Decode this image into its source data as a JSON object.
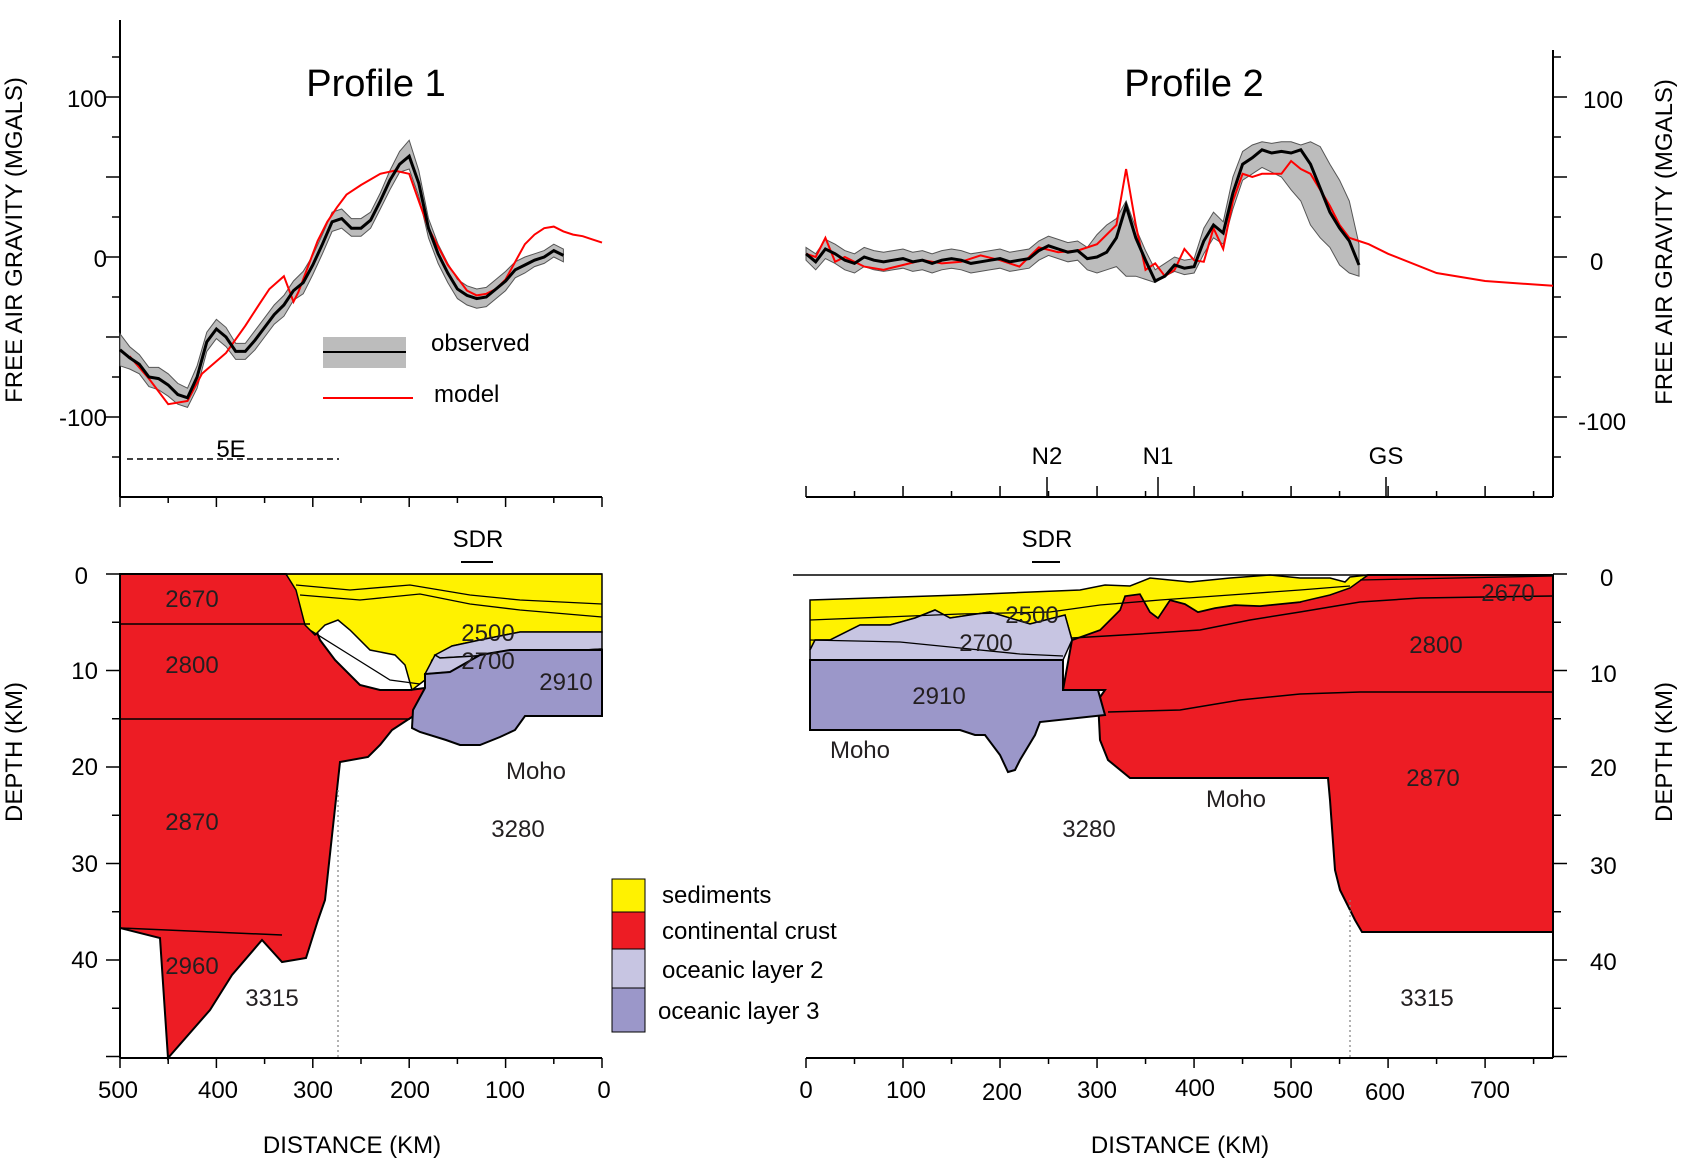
{
  "chart_data": [
    {
      "type": "line",
      "title": "Profile 1",
      "xlabel": "",
      "ylabel": "FREE AIR GRAVITY  (MGALS)",
      "xlim": [
        500,
        0
      ],
      "ylim": [
        -150,
        150
      ],
      "yticks": [
        100,
        0,
        -100
      ],
      "yticklabels": [
        "100",
        "0",
        "-100"
      ],
      "legend": {
        "placement": "lower-center",
        "entries": [
          "observed",
          "model"
        ]
      },
      "series": [
        {
          "name": "observed",
          "x": [
            500,
            490,
            480,
            470,
            460,
            450,
            440,
            430,
            420,
            410,
            400,
            390,
            380,
            370,
            360,
            350,
            340,
            330,
            320,
            310,
            300,
            290,
            280,
            270,
            260,
            250,
            240,
            230,
            220,
            210,
            200,
            190,
            180,
            170,
            160,
            150,
            140,
            130,
            120,
            110,
            100,
            90,
            80,
            70,
            60,
            50,
            40
          ],
          "y": [
            -58,
            -63,
            -67,
            -75,
            -76,
            -80,
            -86,
            -88,
            -75,
            -53,
            -45,
            -50,
            -59,
            -59,
            -52,
            -44,
            -36,
            -30,
            -21,
            -16,
            -5,
            8,
            22,
            24,
            18,
            18,
            23,
            35,
            48,
            58,
            63,
            46,
            18,
            2,
            -10,
            -20,
            -24,
            -26,
            -25,
            -20,
            -15,
            -8,
            -5,
            -2,
            0,
            4,
            1
          ]
        },
        {
          "name": "observed range",
          "x": [
            500,
            490,
            480,
            470,
            460,
            450,
            440,
            430,
            420,
            410,
            400,
            390,
            380,
            370,
            360,
            350,
            340,
            330,
            320,
            310,
            300,
            290,
            280,
            270,
            260,
            250,
            240,
            230,
            220,
            210,
            200,
            190,
            180,
            170,
            160,
            150,
            140,
            130,
            120,
            110,
            100,
            90,
            80,
            70,
            60,
            50,
            40
          ],
          "low": [
            -68,
            -70,
            -73,
            -81,
            -83,
            -87,
            -92,
            -94,
            -82,
            -59,
            -51,
            -56,
            -64,
            -64,
            -58,
            -50,
            -42,
            -37,
            -27,
            -23,
            -11,
            2,
            16,
            18,
            13,
            13,
            18,
            30,
            42,
            53,
            55,
            38,
            12,
            -4,
            -16,
            -26,
            -30,
            -32,
            -31,
            -26,
            -21,
            -13,
            -10,
            -6,
            -4,
            0,
            -3
          ],
          "high": [
            -48,
            -56,
            -61,
            -69,
            -69,
            -73,
            -79,
            -82,
            -68,
            -47,
            -39,
            -44,
            -54,
            -54,
            -46,
            -38,
            -30,
            -24,
            -15,
            -9,
            1,
            14,
            28,
            30,
            24,
            24,
            28,
            40,
            54,
            66,
            73,
            54,
            24,
            8,
            -4,
            -14,
            -18,
            -20,
            -19,
            -14,
            -9,
            -3,
            0,
            2,
            4,
            8,
            5
          ]
        },
        {
          "name": "model",
          "x": [
            490,
            470,
            450,
            430,
            415,
            390,
            370,
            355,
            345,
            330,
            320,
            315,
            305,
            295,
            285,
            275,
            265,
            250,
            230,
            215,
            200,
            190,
            180,
            160,
            140,
            130,
            120,
            110,
            100,
            90,
            80,
            70,
            60,
            50,
            40,
            30,
            20,
            10,
            0
          ],
          "y": [
            -62,
            -76,
            -92,
            -90,
            -73,
            -60,
            -43,
            -29,
            -20,
            -12,
            -28,
            -22,
            -6,
            10,
            22,
            31,
            39,
            45,
            52,
            54,
            52,
            35,
            18,
            -5,
            -21,
            -24,
            -23,
            -20,
            -14,
            -3,
            8,
            14,
            18,
            19,
            16,
            14,
            13,
            11,
            9
          ]
        }
      ],
      "annotations": [
        {
          "text": "5E",
          "x_start": 500,
          "x_end": 275,
          "style": "dashed"
        }
      ]
    },
    {
      "type": "area",
      "title": "",
      "xlabel": "DISTANCE (KM)",
      "ylabel": "DEPTH (KM)",
      "xlim": [
        500,
        0
      ],
      "ylim": [
        0,
        50
      ],
      "xticks": [
        500,
        400,
        300,
        200,
        100,
        0
      ],
      "xticklabels": [
        "500",
        "400",
        "300",
        "200",
        "100",
        "0"
      ],
      "yticks": [
        0,
        10,
        20,
        30,
        40
      ],
      "yticklabels": [
        "0",
        "10",
        "20",
        "30",
        "40"
      ],
      "marker": {
        "text": "SDR",
        "x_start": 150,
        "x_end": 115
      },
      "layers": [
        {
          "name": "continental crust",
          "densities": [
            2670,
            2800,
            2870,
            2960
          ]
        },
        {
          "name": "sediments"
        },
        {
          "name": "oceanic layer 2",
          "densities": [
            2500,
            2700
          ]
        },
        {
          "name": "oceanic layer 3",
          "densities": [
            2910
          ]
        }
      ],
      "density_labels": [
        "2670",
        "2800",
        "2870",
        "2960",
        "3315",
        "2500",
        "2700",
        "2910",
        "3280"
      ],
      "text_labels": [
        "Moho"
      ]
    },
    {
      "type": "line",
      "title": "Profile 2",
      "xlabel": "",
      "ylabel": "FREE AIR GRAVITY  (MGALS)",
      "xlim": [
        0,
        770
      ],
      "ylim": [
        -150,
        150
      ],
      "yticks": [
        100,
        0,
        -100
      ],
      "yticklabels": [
        "100",
        "0",
        "-100"
      ],
      "markers": [
        {
          "text": "N2",
          "x": 245
        },
        {
          "text": "N1",
          "x": 360
        },
        {
          "text": "GS",
          "x": 597
        }
      ],
      "series": [
        {
          "name": "observed",
          "x": [
            0,
            10,
            20,
            30,
            40,
            50,
            60,
            70,
            80,
            90,
            100,
            110,
            120,
            130,
            140,
            150,
            160,
            170,
            180,
            190,
            200,
            210,
            220,
            230,
            240,
            250,
            260,
            270,
            280,
            290,
            300,
            310,
            320,
            330,
            340,
            350,
            360,
            370,
            380,
            390,
            400,
            410,
            420,
            430,
            440,
            450,
            460,
            470,
            480,
            490,
            500,
            510,
            520,
            530,
            540,
            550,
            560,
            570
          ],
          "y": [
            2,
            -3,
            5,
            2,
            -2,
            -4,
            0,
            -2,
            -3,
            -2,
            -1,
            -3,
            -2,
            -4,
            -2,
            -1,
            -2,
            -4,
            -3,
            -2,
            -1,
            -3,
            -2,
            -1,
            4,
            7,
            5,
            3,
            4,
            -1,
            0,
            3,
            12,
            32,
            12,
            -2,
            -15,
            -12,
            -5,
            -7,
            -6,
            10,
            20,
            15,
            40,
            58,
            62,
            67,
            65,
            66,
            65,
            67,
            58,
            43,
            28,
            18,
            10,
            -5
          ]
        },
        {
          "name": "observed range",
          "x": [
            0,
            10,
            20,
            30,
            40,
            50,
            60,
            70,
            80,
            90,
            100,
            110,
            120,
            130,
            140,
            150,
            160,
            170,
            180,
            190,
            200,
            210,
            220,
            230,
            240,
            250,
            260,
            270,
            280,
            290,
            300,
            310,
            320,
            330,
            340,
            350,
            360,
            370,
            380,
            390,
            400,
            410,
            420,
            430,
            440,
            450,
            460,
            470,
            480,
            490,
            500,
            510,
            520,
            530,
            540,
            550,
            560,
            570
          ],
          "low": [
            -2,
            -8,
            -1,
            -4,
            -8,
            -10,
            -6,
            -8,
            -9,
            -8,
            -7,
            -9,
            -8,
            -10,
            -8,
            -7,
            -8,
            -10,
            -9,
            -8,
            -7,
            -9,
            -8,
            -7,
            -2,
            1,
            -1,
            -3,
            -2,
            -8,
            -10,
            -8,
            -6,
            -12,
            -12,
            -14,
            -16,
            -12,
            -9,
            -11,
            -10,
            2,
            12,
            8,
            30,
            48,
            52,
            56,
            53,
            50,
            42,
            35,
            20,
            12,
            6,
            -5,
            -10,
            -12
          ],
          "high": [
            6,
            2,
            11,
            8,
            4,
            2,
            6,
            4,
            3,
            4,
            5,
            3,
            4,
            2,
            4,
            5,
            4,
            2,
            3,
            4,
            5,
            3,
            4,
            5,
            10,
            13,
            11,
            9,
            10,
            6,
            14,
            20,
            24,
            35,
            18,
            4,
            -8,
            -4,
            0,
            -2,
            -1,
            18,
            28,
            22,
            50,
            66,
            70,
            72,
            71,
            72,
            72,
            70,
            72,
            69,
            58,
            48,
            35,
            8
          ]
        },
        {
          "name": "model",
          "x": [
            0,
            10,
            20,
            30,
            40,
            60,
            80,
            100,
            120,
            140,
            160,
            180,
            200,
            220,
            240,
            260,
            280,
            300,
            320,
            330,
            340,
            350,
            360,
            370,
            380,
            390,
            400,
            410,
            420,
            430,
            440,
            450,
            460,
            470,
            480,
            490,
            500,
            510,
            520,
            530,
            540,
            550,
            560,
            570,
            580,
            600,
            650,
            700,
            770
          ],
          "y": [
            2,
            0,
            12,
            -3,
            0,
            -6,
            -8,
            -5,
            -2,
            -4,
            -3,
            1,
            -2,
            -6,
            6,
            3,
            4,
            8,
            20,
            55,
            20,
            -8,
            -4,
            -12,
            -8,
            5,
            -2,
            -3,
            18,
            5,
            35,
            52,
            50,
            52,
            52,
            52,
            60,
            55,
            52,
            42,
            32,
            20,
            12,
            10,
            8,
            2,
            -10,
            -15,
            -18
          ]
        }
      ]
    },
    {
      "type": "area",
      "title": "",
      "xlabel": "DISTANCE (KM)",
      "ylabel": "DEPTH (KM)",
      "xlim": [
        0,
        770
      ],
      "ylim": [
        0,
        50
      ],
      "xticks": [
        0,
        100,
        200,
        300,
        400,
        500,
        600,
        700
      ],
      "xticklabels": [
        "0",
        "100",
        "200",
        "300",
        "400",
        "500",
        "600",
        "700"
      ],
      "yticks": [
        0,
        10,
        20,
        30,
        40
      ],
      "yticklabels": [
        "0",
        "10",
        "20",
        "30",
        "40"
      ],
      "marker": {
        "text": "SDR",
        "x_start": 230,
        "x_end": 260
      },
      "layers": [
        {
          "name": "sediments"
        },
        {
          "name": "oceanic layer 2",
          "densities": [
            2500,
            2700
          ]
        },
        {
          "name": "oceanic layer 3",
          "densities": [
            2910
          ]
        },
        {
          "name": "continental crust",
          "densities": [
            2670,
            2800,
            2870
          ]
        }
      ],
      "density_labels": [
        "2500",
        "2700",
        "2910",
        "2670",
        "2800",
        "2870",
        "3280",
        "3315"
      ],
      "text_labels": [
        "Moho",
        "Moho"
      ]
    }
  ],
  "legend": {
    "entries": [
      {
        "label": "sediments",
        "color": "#fff200"
      },
      {
        "label": "continental crust",
        "color": "#ed1c24"
      },
      {
        "label": "oceanic layer 2",
        "color": "#c7c5e2"
      },
      {
        "label": "oceanic layer 3",
        "color": "#9b97c9"
      }
    ]
  },
  "colors": {
    "observed_band": "#bcbcbc",
    "observed_line": "#000000",
    "model_line": "#ff0000",
    "sediments": "#fff200",
    "continental_crust": "#ed1c24",
    "oceanic_layer_2": "#c7c5e2",
    "oceanic_layer_3": "#9b97c9"
  }
}
